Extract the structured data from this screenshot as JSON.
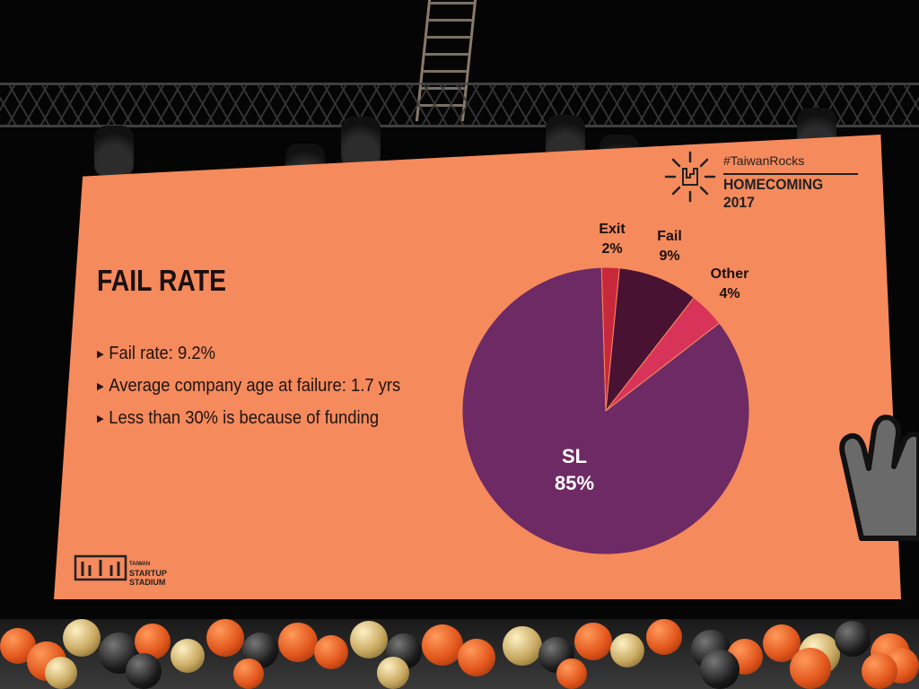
{
  "slide": {
    "title": "FAIL RATE",
    "bullets": [
      "Fail rate: 9.2%",
      "Average company age at failure: 1.7 yrs",
      "Less than 30% is because of funding"
    ]
  },
  "badge": {
    "hashtag": "#TaiwanRocks",
    "event": "HOMECOMING 2017"
  },
  "logo": {
    "line1": "TAIWAN",
    "line2": "STARTUP",
    "line3": "STADIUM"
  },
  "colors": {
    "screen": "#f58a5c",
    "text": "#1a1010",
    "sl": "#6e2a64",
    "exit": "#c8283c",
    "fail": "#4a1232",
    "other": "#d8345a"
  },
  "chart_data": {
    "type": "pie",
    "slices": [
      {
        "name": "Exit",
        "value": 2
      },
      {
        "name": "Fail",
        "value": 9
      },
      {
        "name": "Other",
        "value": 4
      },
      {
        "name": "SL",
        "value": 85
      }
    ],
    "value_labels": [
      "2%",
      "9%",
      "4%",
      "85%"
    ]
  }
}
